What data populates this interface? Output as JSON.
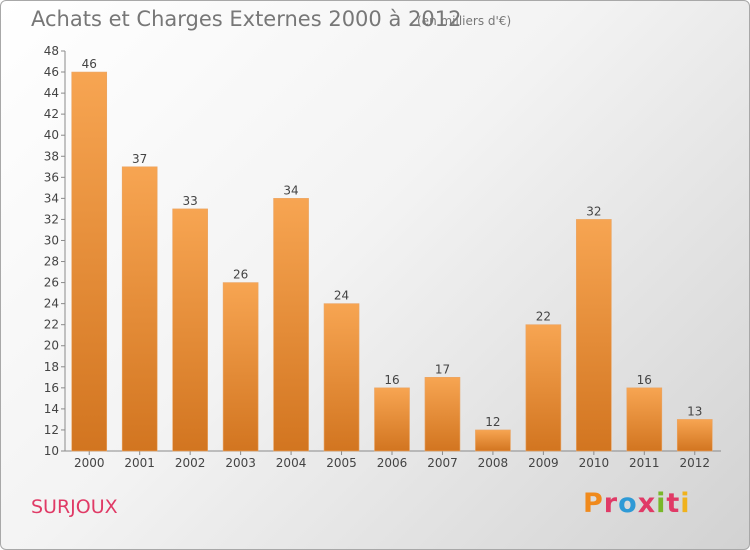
{
  "header": {
    "title": "Achats et Charges Externes 2000 à 2012",
    "units": "(en milliers d'€)"
  },
  "footer": {
    "commune": "SURJOUX",
    "logo_text": "Proxiti"
  },
  "colors": {
    "bar_light": "#f7a552",
    "bar_dark": "#d27520",
    "commune_text": "#e03a66",
    "logo_letters": [
      "#f08a1c",
      "#e03a66",
      "#2e9ad6",
      "#e03a66",
      "#79b829",
      "#e03a66",
      "#f0b21c"
    ]
  },
  "chart_data": {
    "type": "bar",
    "title": "Achats et Charges Externes 2000 à 2012",
    "subtitle": "(en milliers d'€)",
    "categories": [
      "2000",
      "2001",
      "2002",
      "2003",
      "2004",
      "2005",
      "2006",
      "2007",
      "2008",
      "2009",
      "2010",
      "2011",
      "2012"
    ],
    "values": [
      46,
      37,
      33,
      26,
      34,
      24,
      16,
      17,
      12,
      22,
      32,
      16,
      13
    ],
    "ylim": [
      10,
      48
    ],
    "yticks": [
      10,
      12,
      14,
      16,
      18,
      20,
      22,
      24,
      26,
      28,
      30,
      32,
      34,
      36,
      38,
      40,
      42,
      44,
      46,
      48
    ],
    "grid": false,
    "legend": "none"
  }
}
